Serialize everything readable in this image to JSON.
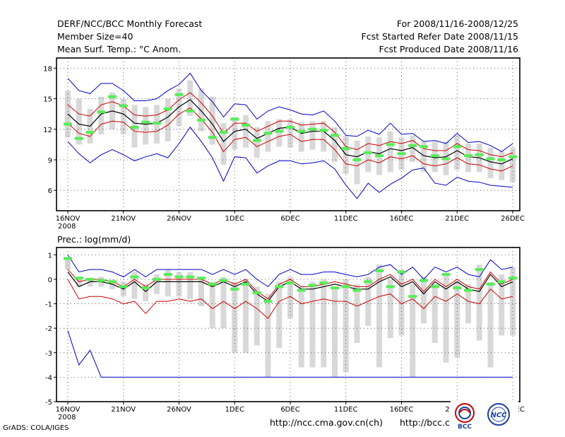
{
  "header": {
    "title": "DERF/NCC/BCC Monthly Forecast",
    "member_size": "Member Size=40",
    "variable": "Mean Surf. Temp.: °C Anom.",
    "forecast_period": "For 2008/11/16-2008/12/25",
    "refer_date": "Fcst Started Refer Date 2008/11/15",
    "produced_date": "Fcst Produced Date 2008/11/16"
  },
  "footer": {
    "grads_credit": "GrADS: COLA/IGES",
    "url_ncc": "http://ncc.cma.gov.cn(ch)",
    "url_bcc": "http://bcc.c",
    "logo_bcc_text": "BCC",
    "logo_ncc_text": "NCC"
  },
  "colors": {
    "ensemble_mean": "#000000",
    "spread_inner": "#cc0000",
    "spread_outer": "#0000cc",
    "observed_marker": "#55ee55",
    "bars": "#d8d8d8"
  },
  "chart_data": [
    {
      "type": "line",
      "title": "Mean Surf. Temp.: °C Anom.",
      "ylabel": "°C Anom.",
      "xlabel": "",
      "ylim": [
        4.0,
        19.0
      ],
      "yticks": [
        6,
        9,
        12,
        15,
        18
      ],
      "x_tick_labels": [
        "16NOV\n2008",
        "21NOV",
        "26NOV",
        "1DEC",
        "6DEC",
        "11DEC",
        "16DEC",
        "21DEC",
        "26DEC"
      ],
      "x_tick_index": [
        0,
        5,
        10,
        15,
        20,
        25,
        30,
        35,
        40
      ],
      "grid": true,
      "series": [
        {
          "name": "ensemble_mean",
          "values": [
            13.5,
            12.5,
            12.3,
            13.5,
            13.8,
            13.5,
            12.6,
            12.5,
            12.6,
            13.2,
            14.2,
            14.9,
            13.8,
            12.5,
            10.8,
            11.8,
            12.0,
            11.1,
            11.6,
            12.1,
            12.2,
            11.6,
            11.8,
            11.8,
            10.9,
            9.5,
            9.3,
            9.8,
            9.6,
            10.1,
            9.9,
            10.2,
            9.4,
            9.2,
            9.3,
            9.9,
            9.3,
            9.2,
            8.8,
            8.6,
            9.1
          ]
        },
        {
          "name": "spread_inner_upper",
          "values": [
            14.4,
            13.5,
            13.3,
            14.4,
            14.7,
            14.3,
            13.4,
            13.3,
            13.4,
            13.9,
            14.9,
            15.6,
            14.6,
            13.3,
            11.6,
            12.6,
            12.6,
            11.8,
            12.3,
            12.8,
            12.8,
            12.4,
            12.5,
            12.6,
            11.7,
            10.3,
            10.0,
            10.6,
            10.4,
            10.8,
            10.6,
            10.9,
            10.1,
            9.9,
            9.9,
            10.6,
            10.0,
            9.9,
            9.5,
            9.3,
            9.7
          ]
        },
        {
          "name": "spread_inner_lower",
          "values": [
            12.6,
            11.6,
            11.3,
            12.5,
            12.8,
            12.7,
            11.8,
            11.7,
            11.8,
            12.4,
            13.5,
            14.1,
            13.0,
            11.7,
            9.8,
            11.0,
            11.2,
            10.3,
            10.8,
            11.3,
            11.5,
            10.8,
            11.0,
            11.0,
            10.0,
            8.6,
            8.4,
            9.0,
            8.7,
            9.3,
            9.1,
            9.4,
            8.6,
            8.4,
            8.6,
            9.2,
            8.6,
            8.5,
            8.1,
            7.9,
            8.4
          ]
        },
        {
          "name": "spread_outer_upper",
          "values": [
            17.0,
            15.8,
            15.5,
            16.5,
            16.5,
            15.8,
            14.8,
            14.8,
            15.0,
            15.8,
            16.4,
            17.5,
            15.8,
            14.7,
            13.2,
            14.5,
            14.4,
            13.0,
            13.8,
            14.2,
            13.9,
            13.5,
            13.4,
            13.8,
            12.8,
            11.4,
            11.3,
            11.9,
            11.5,
            12.6,
            11.5,
            11.6,
            10.8,
            10.9,
            10.6,
            11.6,
            10.7,
            10.8,
            10.4,
            9.8,
            10.6
          ]
        },
        {
          "name": "spread_outer_lower",
          "values": [
            10.8,
            9.6,
            8.7,
            9.5,
            10.0,
            9.5,
            8.9,
            9.3,
            9.6,
            9.2,
            10.6,
            12.2,
            10.8,
            9.2,
            6.9,
            9.3,
            9.2,
            7.7,
            8.4,
            8.9,
            8.9,
            8.6,
            8.7,
            8.9,
            8.1,
            6.5,
            5.2,
            6.7,
            5.8,
            6.6,
            7.2,
            8.0,
            8.2,
            6.7,
            6.5,
            7.3,
            6.9,
            6.8,
            6.5,
            6.4,
            6.3
          ]
        },
        {
          "name": "observed_marker",
          "values": [
            12.5,
            11.1,
            11.7,
            13.7,
            15.2,
            14.3,
            12.2,
            12.7,
            12.6,
            14.0,
            15.4,
            13.8,
            12.9,
            11.2,
            11.7,
            13.0,
            12.4,
            10.9,
            11.6,
            11.8,
            12.2,
            11.8,
            12.0,
            11.9,
            11.4,
            10.1,
            9.0,
            9.7,
            9.4,
            10.5,
            9.6,
            10.4,
            10.3,
            9.4,
            9.1,
            10.3,
            9.4,
            9.5,
            9.1,
            9.0,
            9.3
          ]
        }
      ],
      "bars": [
        {
          "low": 11.2,
          "high": 15.8
        },
        {
          "low": 10.5,
          "high": 15.0
        },
        {
          "low": 10.6,
          "high": 14.0
        },
        {
          "low": 11.5,
          "high": 15.2
        },
        {
          "low": 12.0,
          "high": 15.6
        },
        {
          "low": 11.5,
          "high": 15.0
        },
        {
          "low": 10.2,
          "high": 14.4
        },
        {
          "low": 10.5,
          "high": 14.2
        },
        {
          "low": 10.6,
          "high": 14.4
        },
        {
          "low": 10.8,
          "high": 15.0
        },
        {
          "low": 12.3,
          "high": 16.0
        },
        {
          "low": 13.3,
          "high": 16.8
        },
        {
          "low": 11.8,
          "high": 16.0
        },
        {
          "low": 10.5,
          "high": 15.2
        },
        {
          "low": 8.5,
          "high": 12.6
        },
        {
          "low": 10.0,
          "high": 13.2
        },
        {
          "low": 10.2,
          "high": 13.4
        },
        {
          "low": 9.2,
          "high": 12.2
        },
        {
          "low": 9.8,
          "high": 12.8
        },
        {
          "low": 10.3,
          "high": 13.0
        },
        {
          "low": 10.2,
          "high": 13.0
        },
        {
          "low": 9.8,
          "high": 12.7
        },
        {
          "low": 10.0,
          "high": 12.8
        },
        {
          "low": 9.8,
          "high": 12.8
        },
        {
          "low": 8.8,
          "high": 12.2
        },
        {
          "low": 7.6,
          "high": 11.3
        },
        {
          "low": 6.6,
          "high": 10.9
        },
        {
          "low": 7.8,
          "high": 11.3
        },
        {
          "low": 7.5,
          "high": 11.2
        },
        {
          "low": 7.8,
          "high": 11.8
        },
        {
          "low": 8.0,
          "high": 11.2
        },
        {
          "low": 8.8,
          "high": 11.4
        },
        {
          "low": 7.8,
          "high": 10.8
        },
        {
          "low": 7.8,
          "high": 10.8
        },
        {
          "low": 7.5,
          "high": 10.8
        },
        {
          "low": 8.0,
          "high": 11.4
        },
        {
          "low": 7.8,
          "high": 10.6
        },
        {
          "low": 7.8,
          "high": 10.6
        },
        {
          "low": 7.2,
          "high": 10.2
        },
        {
          "low": 7.0,
          "high": 9.8
        },
        {
          "low": 6.8,
          "high": 10.2
        }
      ]
    },
    {
      "type": "line",
      "title": "Prec.: log(mm/d)",
      "ylabel": "log(mm/d)",
      "xlabel": "",
      "ylim": [
        -5.0,
        1.3
      ],
      "yticks": [
        -5,
        -4,
        -3,
        -2,
        -1,
        0,
        1
      ],
      "x_tick_labels": [
        "16NOV\n2008",
        "21NOV",
        "26NOV",
        "1DEC",
        "6DEC",
        "11DEC",
        "16DEC",
        "21DEC",
        "26DEC"
      ],
      "x_tick_index": [
        0,
        5,
        10,
        15,
        20,
        25,
        30,
        35,
        40
      ],
      "grid": true,
      "series": [
        {
          "name": "ensemble_mean",
          "values": [
            0.3,
            -0.3,
            -0.1,
            -0.1,
            -0.2,
            -0.4,
            -0.1,
            -0.5,
            -0.1,
            -0.1,
            -0.1,
            -0.1,
            -0.1,
            -0.3,
            -0.1,
            -0.3,
            -0.1,
            -0.6,
            -0.9,
            -0.3,
            -0.1,
            -0.4,
            -0.4,
            -0.3,
            -0.2,
            -0.3,
            -0.4,
            -0.4,
            -0.1,
            0.1,
            -0.3,
            -0.1,
            -0.6,
            -0.1,
            -0.4,
            -0.1,
            -0.4,
            -0.5,
            0.2,
            -0.3,
            -0.1
          ]
        },
        {
          "name": "spread_inner_upper",
          "values": [
            0.4,
            -0.1,
            0.0,
            0.0,
            -0.1,
            -0.3,
            0.0,
            -0.3,
            0.0,
            0.0,
            0.0,
            0.0,
            0.0,
            -0.2,
            0.0,
            -0.2,
            0.0,
            -0.5,
            -0.8,
            -0.2,
            0.0,
            -0.3,
            -0.3,
            -0.2,
            -0.1,
            -0.2,
            -0.3,
            -0.3,
            0.0,
            0.2,
            -0.2,
            0.0,
            -0.5,
            0.0,
            -0.3,
            0.0,
            -0.3,
            -0.4,
            0.3,
            -0.2,
            0.0
          ]
        },
        {
          "name": "spread_inner_lower",
          "values": [
            0.0,
            -0.8,
            -0.7,
            -0.7,
            -0.8,
            -1.0,
            -0.9,
            -1.4,
            -0.9,
            -0.9,
            -0.8,
            -0.9,
            -0.8,
            -1.2,
            -0.9,
            -1.2,
            -0.9,
            -1.2,
            -1.6,
            -0.9,
            -0.7,
            -1.0,
            -0.9,
            -0.8,
            -0.9,
            -0.9,
            -1.1,
            -0.9,
            -0.7,
            -0.6,
            -1.0,
            -0.8,
            -1.2,
            -0.7,
            -0.9,
            -0.6,
            -0.9,
            -1.0,
            -0.4,
            -0.8,
            -0.7
          ]
        },
        {
          "name": "spread_outer_upper",
          "values": [
            1.0,
            0.3,
            0.4,
            0.4,
            0.3,
            0.1,
            0.4,
            0.1,
            0.4,
            0.4,
            0.4,
            0.4,
            0.4,
            0.2,
            0.4,
            0.2,
            0.4,
            0.0,
            -0.3,
            0.2,
            0.4,
            0.2,
            0.2,
            0.3,
            0.3,
            0.2,
            0.1,
            0.2,
            0.5,
            0.6,
            0.2,
            0.5,
            0.0,
            0.5,
            0.3,
            0.5,
            0.2,
            0.1,
            0.8,
            0.4,
            0.5
          ]
        },
        {
          "name": "spread_outer_lower",
          "values": [
            -2.1,
            -3.5,
            -2.9,
            -4.0,
            -4.0,
            -4.0,
            -4.0,
            -4.0,
            -4.0,
            -4.0,
            -4.0,
            -4.0,
            -4.0,
            -4.0,
            -4.0,
            -4.0,
            -4.0,
            -4.0,
            -4.0,
            -4.0,
            -4.0,
            -4.0,
            -4.0,
            -4.0,
            -4.0,
            -4.0,
            -4.0,
            -4.0,
            -4.0,
            -4.0,
            -4.0,
            -4.0,
            -4.0,
            -4.0,
            -4.0,
            -4.0,
            -4.0,
            -4.0,
            -4.0,
            -4.0,
            -4.0
          ]
        },
        {
          "name": "observed_marker",
          "values": [
            0.85,
            0.05,
            0.0,
            -0.05,
            -0.1,
            -0.3,
            0.1,
            -0.35,
            0.0,
            0.2,
            0.1,
            0.1,
            0.05,
            -0.2,
            -0.05,
            -0.4,
            -0.2,
            -0.55,
            -0.9,
            -0.3,
            -0.15,
            -0.45,
            -0.25,
            -0.15,
            -0.35,
            -0.3,
            -0.45,
            -0.1,
            0.35,
            -0.3,
            0.3,
            -0.7,
            -0.05,
            -0.3,
            0.2,
            -0.35,
            -0.45,
            0.4,
            -0.2,
            -0.1,
            0.05
          ]
        }
      ],
      "bars": [
        {
          "low": 0.4,
          "high": 0.9
        },
        {
          "low": -0.3,
          "high": 0.1
        },
        {
          "low": -0.3,
          "high": 0.0
        },
        {
          "low": -0.3,
          "high": 0.1
        },
        {
          "low": -0.4,
          "high": 0.0
        },
        {
          "low": -0.7,
          "high": -0.1
        },
        {
          "low": -0.8,
          "high": 0.3
        },
        {
          "low": -0.9,
          "high": -0.2
        },
        {
          "low": -0.6,
          "high": 0.2
        },
        {
          "low": -0.7,
          "high": 0.4
        },
        {
          "low": -0.7,
          "high": 0.3
        },
        {
          "low": -0.8,
          "high": 0.3
        },
        {
          "low": -1.1,
          "high": 0.1
        },
        {
          "low": -2.0,
          "high": -0.1
        },
        {
          "low": -2.0,
          "high": 0.1
        },
        {
          "low": -3.0,
          "high": -0.1
        },
        {
          "low": -3.0,
          "high": 0.0
        },
        {
          "low": -2.7,
          "high": -0.3
        },
        {
          "low": -4.0,
          "high": -0.6
        },
        {
          "low": -2.8,
          "high": -0.1
        },
        {
          "low": -1.6,
          "high": 0.1
        },
        {
          "low": -3.6,
          "high": -0.3
        },
        {
          "low": -3.6,
          "high": -0.1
        },
        {
          "low": -3.6,
          "high": 0.0
        },
        {
          "low": -4.0,
          "high": -0.3
        },
        {
          "low": -3.8,
          "high": 0.0
        },
        {
          "low": -2.6,
          "high": -0.2
        },
        {
          "low": -1.9,
          "high": 0.1
        },
        {
          "low": -3.6,
          "high": 0.6
        },
        {
          "low": -2.4,
          "high": 0.0
        },
        {
          "low": -2.3,
          "high": 0.4
        },
        {
          "low": -4.0,
          "high": -0.2
        },
        {
          "low": -1.8,
          "high": 0.1
        },
        {
          "low": -2.6,
          "high": -0.2
        },
        {
          "low": -3.4,
          "high": 0.2
        },
        {
          "low": -3.2,
          "high": -0.1
        },
        {
          "low": -1.8,
          "high": -0.2
        },
        {
          "low": -2.5,
          "high": 0.6
        },
        {
          "low": -3.6,
          "high": -0.1
        },
        {
          "low": -2.3,
          "high": 0.2
        },
        {
          "low": -2.3,
          "high": 0.5
        }
      ]
    }
  ]
}
